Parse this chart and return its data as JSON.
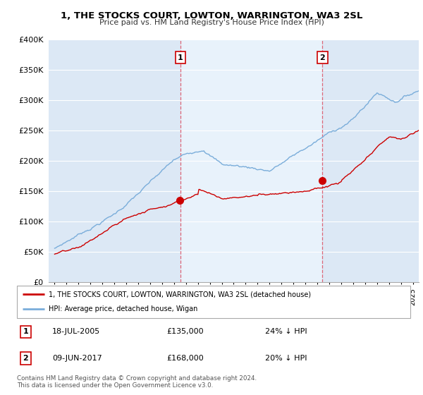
{
  "title": "1, THE STOCKS COURT, LOWTON, WARRINGTON, WA3 2SL",
  "subtitle": "Price paid vs. HM Land Registry's House Price Index (HPI)",
  "legend_label_red": "1, THE STOCKS COURT, LOWTON, WARRINGTON, WA3 2SL (detached house)",
  "legend_label_blue": "HPI: Average price, detached house, Wigan",
  "footer": "Contains HM Land Registry data © Crown copyright and database right 2024.\nThis data is licensed under the Open Government Licence v3.0.",
  "sale1": {
    "label": "1",
    "date": "18-JUL-2005",
    "price": 135000,
    "pct": "24% ↓ HPI"
  },
  "sale2": {
    "label": "2",
    "date": "09-JUN-2017",
    "price": 168000,
    "pct": "20% ↓ HPI"
  },
  "ylim": [
    0,
    400000
  ],
  "yticks": [
    0,
    50000,
    100000,
    150000,
    200000,
    250000,
    300000,
    350000,
    400000
  ],
  "ytick_labels": [
    "£0",
    "£50K",
    "£100K",
    "£150K",
    "£200K",
    "£250K",
    "£300K",
    "£350K",
    "£400K"
  ],
  "xlim_start": 1994.5,
  "xlim_end": 2025.5,
  "plot_bg": "#dce8f5",
  "highlight_bg": "#e8f2fb",
  "red_color": "#cc0000",
  "blue_color": "#7aadda",
  "vline_color": "#dd6677",
  "grid_color": "#ffffff",
  "sale1_year": 2005.54,
  "sale2_year": 2017.44,
  "sale1_price": 135000,
  "sale2_price": 168000
}
